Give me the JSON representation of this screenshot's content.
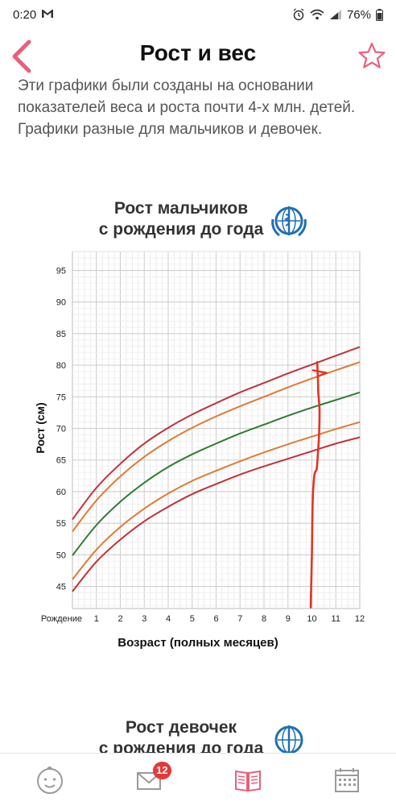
{
  "status_bar": {
    "time": "0:20",
    "battery": "76%"
  },
  "header": {
    "title": "Рост и вес"
  },
  "intro": {
    "text": "Эти графики были созданы на основании показателей веса и роста почти 4-х млн. детей. Графики разные для мальчиков и девочек."
  },
  "colors": {
    "accent": "#e8607c",
    "outer": "#c0323a",
    "inner": "#e07a35",
    "median": "#2e7d32",
    "handwriting": "#e53322",
    "grid": "#d0d0d0"
  },
  "chart_data": {
    "type": "line",
    "title_line1": "Рост мальчиков",
    "title_line2": "с рождения до года",
    "xlabel": "Возраст (полных месяцев)",
    "ylabel": "Рост (см)",
    "x_tick_labels": [
      "Рождение",
      "1",
      "2",
      "3",
      "4",
      "5",
      "6",
      "7",
      "8",
      "9",
      "10",
      "11",
      "12"
    ],
    "y_ticks": [
      45,
      50,
      55,
      60,
      65,
      70,
      75,
      80,
      85,
      90,
      95
    ],
    "xlim": [
      0,
      12
    ],
    "ylim": [
      41.5,
      98
    ],
    "grid": true,
    "x": [
      0,
      1,
      2,
      3,
      4,
      5,
      6,
      7,
      8,
      9,
      10,
      11,
      12
    ],
    "series": [
      {
        "color": "#c0323a",
        "values": [
          55.6,
          60.6,
          64.4,
          67.6,
          70.1,
          72.2,
          74.0,
          75.7,
          77.2,
          78.7,
          80.1,
          81.5,
          82.9
        ]
      },
      {
        "color": "#e07a35",
        "values": [
          53.7,
          58.6,
          62.4,
          65.5,
          68.0,
          70.1,
          71.9,
          73.5,
          75.0,
          76.5,
          77.9,
          79.2,
          80.5
        ]
      },
      {
        "color": "#2e7d32",
        "values": [
          49.9,
          54.7,
          58.4,
          61.4,
          63.9,
          65.9,
          67.6,
          69.2,
          70.6,
          72.0,
          73.3,
          74.5,
          75.7
        ]
      },
      {
        "color": "#e07a35",
        "values": [
          46.1,
          50.8,
          54.4,
          57.3,
          59.7,
          61.7,
          63.3,
          64.8,
          66.2,
          67.5,
          68.7,
          69.9,
          71.0
        ]
      },
      {
        "color": "#c0323a",
        "values": [
          44.2,
          48.9,
          52.4,
          55.3,
          57.6,
          59.6,
          61.2,
          62.7,
          64.0,
          65.2,
          66.4,
          67.6,
          68.6
        ]
      }
    ],
    "handwriting": {
      "vertical_line": [
        [
          9.95,
          41.7
        ],
        [
          10.0,
          50.0
        ],
        [
          10.03,
          58.0
        ],
        [
          10.1,
          62.5
        ],
        [
          10.2,
          63.6
        ],
        [
          10.25,
          66.0
        ],
        [
          10.3,
          69.0
        ],
        [
          10.32,
          73.0
        ],
        [
          10.27,
          75.5
        ],
        [
          10.25,
          78.0
        ],
        [
          10.22,
          80.5
        ]
      ],
      "arrow_head": [
        [
          10.05,
          79.2
        ],
        [
          10.6,
          78.8
        ],
        [
          10.3,
          78.3
        ]
      ]
    }
  },
  "next_chart": {
    "title_line1": "Рост девочек",
    "title_line2": "с рождения до года"
  }
}
